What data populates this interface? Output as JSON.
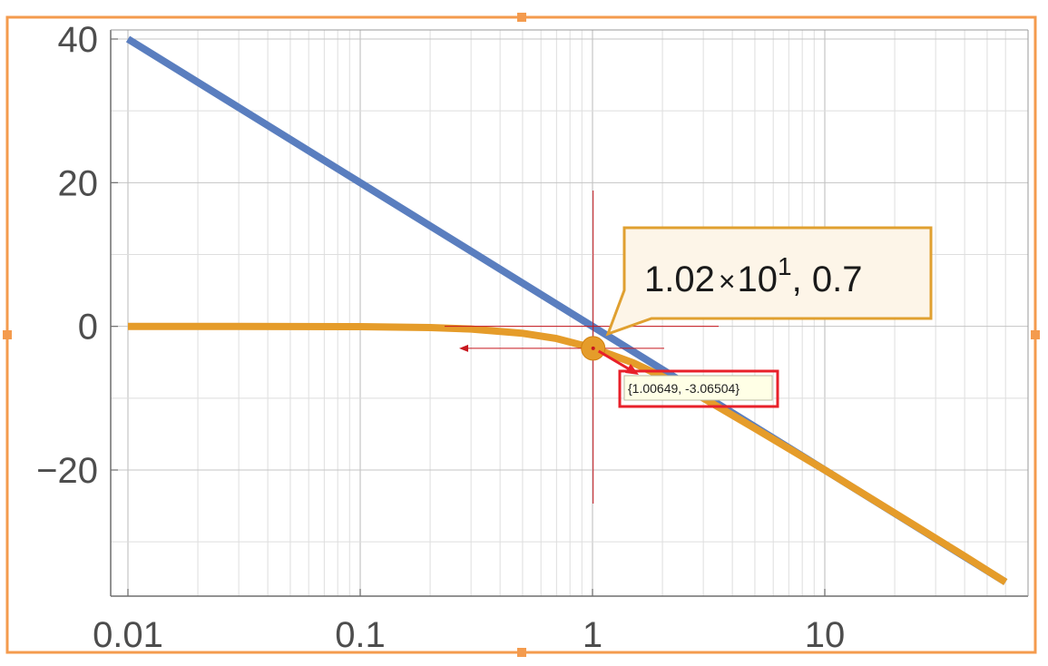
{
  "chart_data": {
    "type": "line",
    "x_scale": "log",
    "xlim": [
      0.01,
      60
    ],
    "ylim": [
      -37,
      41
    ],
    "grid": true,
    "legend": "none",
    "x_ticks": [
      {
        "value": 0.01,
        "label": "0.01"
      },
      {
        "value": 0.1,
        "label": "0.1"
      },
      {
        "value": 1,
        "label": "1"
      },
      {
        "value": 10,
        "label": "10"
      }
    ],
    "y_ticks": [
      {
        "value": 40,
        "label": "40"
      },
      {
        "value": 20,
        "label": "20"
      },
      {
        "value": 0,
        "label": "0"
      },
      {
        "value": -20,
        "label": "−20"
      }
    ],
    "series": [
      {
        "color": "#5a7ebf",
        "x": [
          0.01,
          0.1,
          1,
          10,
          60
        ],
        "y": [
          40,
          20,
          0,
          -20,
          -35.6
        ]
      },
      {
        "color": "#e59c2a",
        "x": [
          0.01,
          0.03,
          0.1,
          0.2,
          0.3,
          0.5,
          0.7,
          1.0,
          1.5,
          2,
          3,
          5,
          10,
          20,
          40,
          60
        ],
        "y": [
          0.0,
          0.0,
          -0.04,
          -0.17,
          -0.37,
          -0.97,
          -1.7,
          -3.0,
          -5.1,
          -7.0,
          -10.0,
          -14.2,
          -20.0,
          -26.0,
          -32.0,
          -35.6
        ]
      }
    ],
    "annotations": {
      "callout": {
        "mantissa": "1.02",
        "times": "×",
        "base": "10",
        "exponent": "1",
        "suffix": ", 0.7",
        "border_color": "#e0a030",
        "fill_color": "#fdf5e8"
      },
      "marker": {
        "x": 1.00649,
        "y": -3.06504,
        "color": "#e59c2a"
      },
      "tooltip": {
        "text": "{1.00649, -3.06504}",
        "box_color": "#e8202a",
        "fill_color": "#ffffe6"
      },
      "crosshair_color": "#c8171e"
    }
  },
  "selection": {
    "frame_color": "#f49b4e"
  }
}
